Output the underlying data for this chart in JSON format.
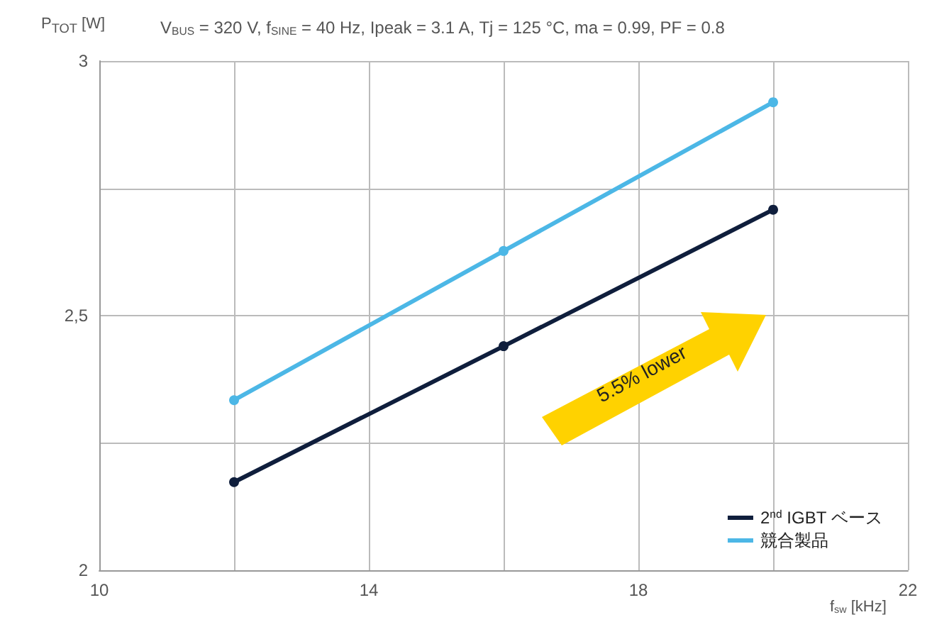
{
  "chart_data": {
    "type": "line",
    "title": "V$_{BUS}$ = 320 V, f$_{SINE}$ = 40 Hz, Ipeak = 3.1 A, Tj = 125 °C, ma = 0.99, PF = 0.8",
    "xlabel": "f$_{sw}$ [kHz]",
    "ylabel": "P$_{TOT}$ [W]",
    "x": [
      12,
      16,
      20
    ],
    "series": [
      {
        "name": "2$^{nd}$ IGBT ベース",
        "color": "#0f1e3c",
        "values": [
          2.173,
          2.44,
          2.708
        ]
      },
      {
        "name": "競合製品",
        "color": "#4cb7e6",
        "values": [
          2.334,
          2.627,
          2.919
        ]
      }
    ],
    "xlim": [
      10,
      22
    ],
    "xticks": [
      10,
      {
        "value": 12,
        "label": null
      },
      14,
      {
        "value": 16,
        "label": null
      },
      18,
      {
        "value": 20,
        "label": null
      },
      22
    ],
    "ylim": [
      2,
      3
    ],
    "yticks": [
      2,
      {
        "value": 2.25,
        "label": null
      },
      {
        "value": 2.5,
        "label": "2,5"
      },
      {
        "value": 2.75,
        "label": null
      },
      3
    ],
    "grid": true,
    "legend": "bottom right",
    "marker": "circle",
    "line_style": "solid",
    "annotations": [
      "5.5% lower"
    ]
  }
}
